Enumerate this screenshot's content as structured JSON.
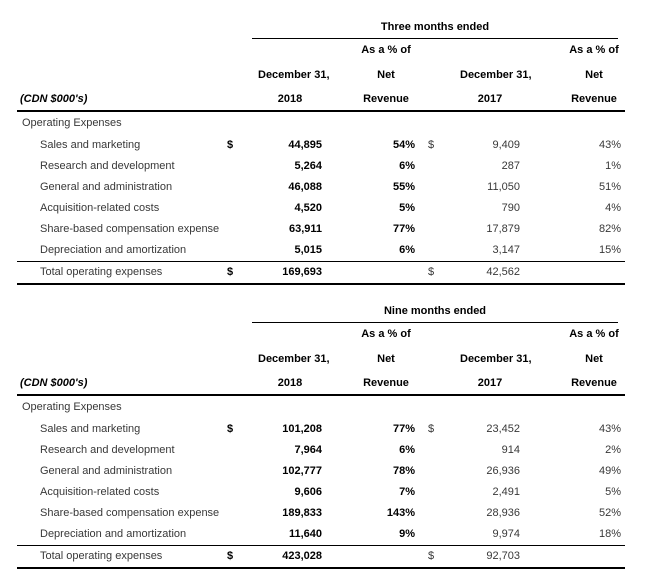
{
  "colors": {
    "background": "#ffffff",
    "line": "#000000",
    "text_bold": "#000000",
    "text_regular": "#383838"
  },
  "tables": [
    {
      "period": "Three months ended",
      "unit_label": "(CDN $000's)",
      "headers": {
        "as_a_pct_of": "As a % of",
        "net": "Net",
        "revenue": "Revenue",
        "date": "December 31,",
        "year_left": "2018",
        "year_right": "2017"
      },
      "section": "Operating Expenses",
      "rows": [
        {
          "label": "Sales and marketing",
          "d1": "$",
          "v1": "44,895",
          "p1": "54%",
          "d2": "$",
          "v2": "9,409",
          "p2": "43%"
        },
        {
          "label": "Research and development",
          "d1": "",
          "v1": "5,264",
          "p1": "6%",
          "d2": "",
          "v2": "287",
          "p2": "1%"
        },
        {
          "label": "General and administration",
          "d1": "",
          "v1": "46,088",
          "p1": "55%",
          "d2": "",
          "v2": "11,050",
          "p2": "51%"
        },
        {
          "label": "Acquisition-related costs",
          "d1": "",
          "v1": "4,520",
          "p1": "5%",
          "d2": "",
          "v2": "790",
          "p2": "4%"
        },
        {
          "label": "Share-based compensation expense",
          "d1": "",
          "v1": "63,911",
          "p1": "77%",
          "d2": "",
          "v2": "17,879",
          "p2": "82%"
        },
        {
          "label": "Depreciation and amortization",
          "d1": "",
          "v1": "5,015",
          "p1": "6%",
          "d2": "",
          "v2": "3,147",
          "p2": "15%"
        }
      ],
      "total": {
        "label": "Total operating expenses",
        "d1": "$",
        "v1": "169,693",
        "d2": "$",
        "v2": "42,562"
      }
    },
    {
      "period": "Nine months ended",
      "unit_label": "(CDN $000's)",
      "headers": {
        "as_a_pct_of": "As a % of",
        "net": "Net",
        "revenue": "Revenue",
        "date": "December 31,",
        "year_left": "2018",
        "year_right": "2017"
      },
      "section": "Operating Expenses",
      "rows": [
        {
          "label": "Sales and marketing",
          "d1": "$",
          "v1": "101,208",
          "p1": "77%",
          "d2": "$",
          "v2": "23,452",
          "p2": "43%"
        },
        {
          "label": "Research and development",
          "d1": "",
          "v1": "7,964",
          "p1": "6%",
          "d2": "",
          "v2": "914",
          "p2": "2%"
        },
        {
          "label": "General and administration",
          "d1": "",
          "v1": "102,777",
          "p1": "78%",
          "d2": "",
          "v2": "26,936",
          "p2": "49%"
        },
        {
          "label": "Acquisition-related costs",
          "d1": "",
          "v1": "9,606",
          "p1": "7%",
          "d2": "",
          "v2": "2,491",
          "p2": "5%"
        },
        {
          "label": "Share-based compensation expense",
          "d1": "",
          "v1": "189,833",
          "p1": "143%",
          "d2": "",
          "v2": "28,936",
          "p2": "52%"
        },
        {
          "label": "Depreciation and amortization",
          "d1": "",
          "v1": "11,640",
          "p1": "9%",
          "d2": "",
          "v2": "9,974",
          "p2": "18%"
        }
      ],
      "total": {
        "label": "Total operating expenses",
        "d1": "$",
        "v1": "423,028",
        "d2": "$",
        "v2": "92,703"
      }
    }
  ]
}
